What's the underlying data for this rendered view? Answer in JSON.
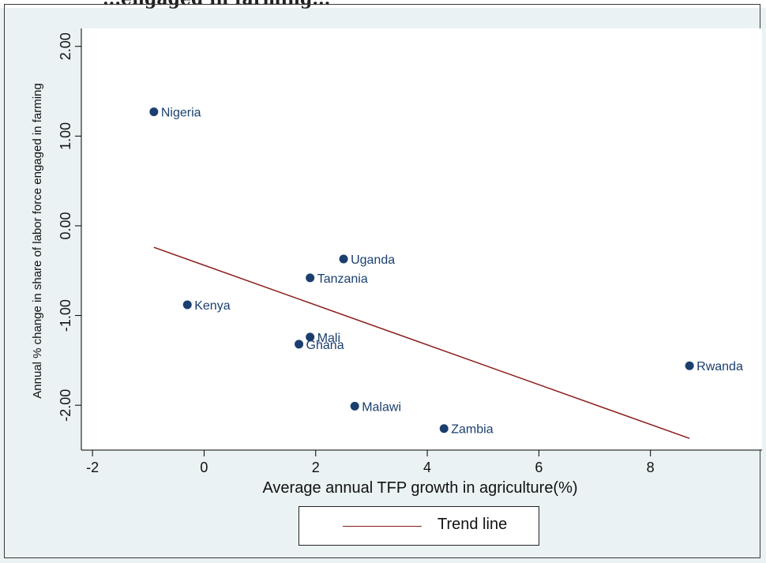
{
  "header_fragment": "...engaged in farming...",
  "chart_data": {
    "type": "scatter",
    "title": "",
    "xlabel": "Average annual TFP growth in agriculture(%)",
    "ylabel": "Annual % change in share of labor force engaged in farming",
    "xlim": [
      -2.2,
      10
    ],
    "ylim": [
      -2.5,
      2.2
    ],
    "xticks": [
      -2,
      0,
      2,
      4,
      6,
      8
    ],
    "yticks": [
      2,
      1,
      0,
      -1,
      -2
    ],
    "ytick_labels": [
      "2.00",
      "1.00",
      "0.00",
      "-1.00",
      "-2.00"
    ],
    "grid": false,
    "points": [
      {
        "label": "Nigeria",
        "x": -0.9,
        "y": 1.27
      },
      {
        "label": "Uganda",
        "x": 2.5,
        "y": -0.37
      },
      {
        "label": "Tanzania",
        "x": 1.9,
        "y": -0.58
      },
      {
        "label": "Kenya",
        "x": -0.3,
        "y": -0.88
      },
      {
        "label": "Mali",
        "x": 1.9,
        "y": -1.24
      },
      {
        "label": "Ghana",
        "x": 1.7,
        "y": -1.32
      },
      {
        "label": "Rwanda",
        "x": 8.7,
        "y": -1.56
      },
      {
        "label": "Malawi",
        "x": 2.7,
        "y": -2.01
      },
      {
        "label": "Zambia",
        "x": 4.3,
        "y": -2.26
      }
    ],
    "trend_line": {
      "x": [
        -0.9,
        8.7
      ],
      "y": [
        -0.24,
        -2.37
      ]
    },
    "point_color": "#1a3f6f",
    "trend_color": "#8b1a1a",
    "legend": {
      "entries": [
        "Trend line"
      ],
      "position": "bottom"
    }
  }
}
